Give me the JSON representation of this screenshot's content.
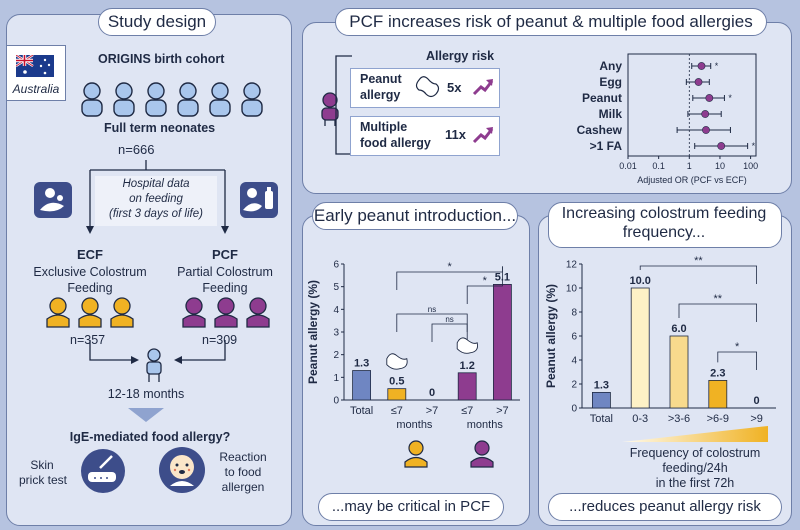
{
  "left": {
    "title": "Study design",
    "country": "Australia",
    "cohort": "ORIGINS birth cohort",
    "neonates": "Full term neonates",
    "n_total": "n=666",
    "hospital_data": [
      "Hospital data",
      "on feeding",
      "(first 3 days of life)"
    ],
    "ecf_abbr": "ECF",
    "ecf_full": [
      "Exclusive Colostrum",
      "Feeding"
    ],
    "ecf_n": "n=357",
    "pcf_abbr": "PCF",
    "pcf_full": [
      "Partial Colostrum",
      "Feeding"
    ],
    "pcf_n": "n=309",
    "age": "12-18 months",
    "question": "IgE-mediated food allergy?",
    "skin_test": [
      "Skin",
      "prick test"
    ],
    "reaction": [
      "Reaction",
      "to food",
      "allergen"
    ]
  },
  "top": {
    "title": "PCF increases risk of peanut & multiple food allergies",
    "risk_title": "Allergy risk",
    "peanut_label": [
      "Peanut",
      "allergy"
    ],
    "peanut_risk": "5x",
    "multi_label": [
      "Multiple",
      "food allergy"
    ],
    "multi_risk": "11x"
  },
  "mid": {
    "title": "Early peanut introduction...",
    "footer": "...may be critical in PCF"
  },
  "right": {
    "title": [
      "Increasing colostrum feeding",
      "frequency..."
    ],
    "footer": "...reduces peanut allergy risk",
    "gradient_label": [
      "Frequency of colostrum",
      "feeding/24h",
      "in the first 72h"
    ]
  },
  "colors": {
    "ecf": "#f0b223",
    "pcf": "#8e3c8f",
    "total": "#6f86c2",
    "dot": "#8e3c8f",
    "arrow": "#8e3c8f"
  },
  "chart_data": [
    {
      "type": "scatter",
      "subtype": "forest",
      "categories": [
        "Any",
        "Egg",
        "Peanut",
        "Milk",
        "Cashew",
        ">1 FA"
      ],
      "values": [
        2.5,
        2.0,
        4.5,
        3.3,
        3.5,
        11.0
      ],
      "ci_low": [
        1.2,
        0.8,
        1.3,
        0.9,
        0.4,
        1.5
      ],
      "ci_high": [
        5,
        4.5,
        14,
        11,
        22,
        80
      ],
      "significance": [
        "*",
        "",
        "*",
        "",
        "",
        "*"
      ],
      "x_ticks": [
        "0.01",
        "0.1",
        "1",
        "10",
        "100"
      ],
      "xlim": [
        0.01,
        150
      ],
      "x_scale": "log",
      "xlabel": "Adjusted OR (PCF vs ECF)"
    },
    {
      "type": "bar",
      "categories": [
        "Total",
        "≤7",
        ">7",
        "≤7",
        ">7"
      ],
      "group_labels": [
        "months",
        "months"
      ],
      "values": [
        1.3,
        0.5,
        0,
        1.2,
        5.1
      ],
      "value_labels": [
        "1.3",
        "0.5",
        "0",
        "1.2",
        "5.1"
      ],
      "bar_colors": [
        "#6f86c2",
        "#f0b223",
        "#f0b223",
        "#8e3c8f",
        "#8e3c8f"
      ],
      "ylabel": "Peanut allergy (%)",
      "ylim": [
        0,
        6
      ],
      "y_ticks": [
        "0",
        "1",
        "2",
        "3",
        "4",
        "5",
        "6"
      ],
      "comparisons": [
        {
          "from": 1,
          "to": 4,
          "label": "*"
        },
        {
          "from": 3,
          "to": 4,
          "label": "*"
        },
        {
          "from": 1,
          "to": 3,
          "label": "ns"
        },
        {
          "from": 2,
          "to": 3,
          "label": "ns"
        }
      ]
    },
    {
      "type": "bar",
      "categories": [
        "Total",
        "0-3",
        ">3-6",
        ">6-9",
        ">9"
      ],
      "values": [
        1.3,
        10.0,
        6.0,
        2.3,
        0
      ],
      "value_labels": [
        "1.3",
        "10.0",
        "6.0",
        "2.3",
        "0"
      ],
      "bar_colors": [
        "#6f86c2",
        "#fdf1c6",
        "#f8da8d",
        "#f0b223",
        "#f0b223"
      ],
      "ylabel": "Peanut allergy (%)",
      "ylim": [
        0,
        12
      ],
      "y_ticks": [
        "0",
        "2",
        "4",
        "6",
        "8",
        "10",
        "12"
      ],
      "comparisons": [
        {
          "from": 1,
          "to": 4,
          "label": "**"
        },
        {
          "from": 2,
          "to": 4,
          "label": "**"
        },
        {
          "from": 3,
          "to": 4,
          "label": "*"
        }
      ]
    }
  ]
}
